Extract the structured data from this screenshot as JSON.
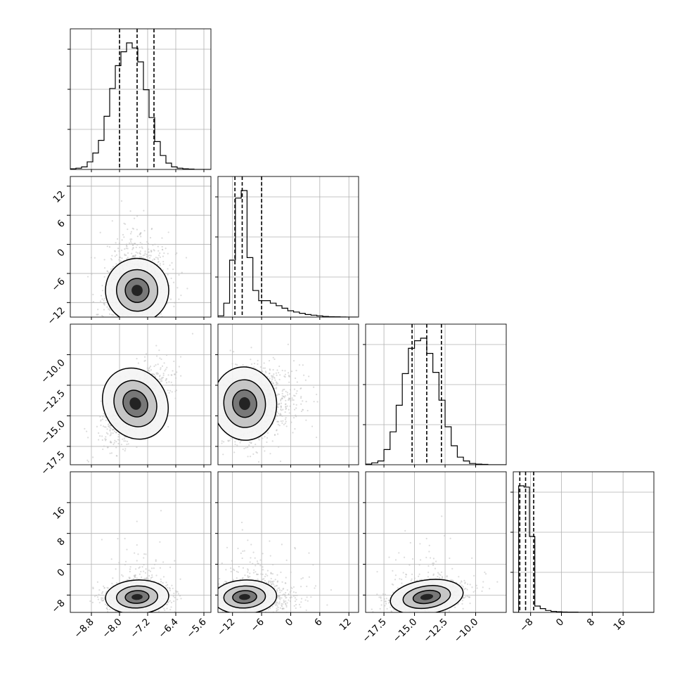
{
  "chart_data": {
    "type": "corner",
    "parameters": [
      {
        "ticks": [
          -8.8,
          -8.0,
          -7.2,
          -6.4,
          -5.6
        ],
        "tick_labels": [
          "−8.8",
          "−8.0",
          "−7.2",
          "−6.4",
          "−5.6"
        ],
        "range": [
          -9.4,
          -5.4
        ],
        "quantiles": [
          -8.0,
          -7.5,
          -7.02
        ],
        "hist": {
          "start": -9.4,
          "width": 0.16,
          "heights": [
            0.5,
            1,
            2,
            6,
            13,
            23,
            42,
            64,
            82,
            93,
            100,
            96,
            85,
            63,
            41,
            22,
            11,
            5,
            2,
            1,
            0.5,
            0.3,
            0,
            0,
            0
          ]
        }
      },
      {
        "ticks": [
          -12,
          -6,
          0,
          6,
          12
        ],
        "tick_labels": [
          "−12",
          "−6",
          "0",
          "6",
          "12"
        ],
        "range": [
          -15,
          14
        ],
        "quantiles": [
          -11.5,
          -10.0,
          -6.0
        ],
        "hist": {
          "start": -15,
          "width": 1.2,
          "heights": [
            1,
            11,
            45,
            94,
            100,
            47,
            21,
            13,
            13,
            11,
            9,
            7,
            5,
            4,
            3,
            2,
            1.5,
            1,
            0.5,
            0.3,
            0.2,
            0.1,
            0,
            0
          ]
        }
      },
      {
        "ticks": [
          -17.5,
          -15.0,
          -12.5,
          -10.0
        ],
        "tick_labels": [
          "−17.5",
          "−15.0",
          "−12.5",
          "−10.0"
        ],
        "range": [
          -19,
          -7.5
        ],
        "quantiles": [
          -15.2,
          -14.0,
          -12.8
        ],
        "hist": {
          "start": -19,
          "width": 0.5,
          "heights": [
            0.5,
            1.5,
            3,
            12,
            26,
            47,
            72,
            92,
            98,
            100,
            88,
            73,
            51,
            30,
            15,
            6,
            3,
            1,
            0.5,
            0.3,
            0,
            0,
            0
          ]
        }
      },
      {
        "ticks": [
          -8,
          0,
          8,
          16
        ],
        "tick_labels": [
          "−8",
          "0",
          "8",
          "16"
        ],
        "range": [
          -12.5,
          24
        ],
        "quantiles": [
          -10.8,
          -9.3,
          -7.2
        ],
        "hist": {
          "start": -12.5,
          "width": 1.4,
          "heights": [
            0,
            100,
            99,
            60,
            5,
            3,
            1.5,
            0.8,
            0.5,
            0.3,
            0.2,
            0.2,
            0.1,
            0.1,
            0.1,
            0.1,
            0,
            0,
            0,
            0,
            0,
            0,
            0,
            0,
            0,
            0
          ]
        }
      }
    ],
    "pairs": [
      {
        "row": 1,
        "col": 0,
        "mean": [
          -7.5,
          -9.5
        ],
        "sd": [
          0.45,
          3.3
        ],
        "corr": 0.15
      },
      {
        "row": 2,
        "col": 0,
        "mean": [
          -7.55,
          -14.0
        ],
        "sd": [
          0.45,
          1.5
        ],
        "corr": 0.55
      },
      {
        "row": 2,
        "col": 1,
        "mean": [
          -9.5,
          -14.0
        ],
        "sd": [
          3.3,
          1.5
        ],
        "corr": 0.1
      },
      {
        "row": 3,
        "col": 0,
        "mean": [
          -7.5,
          -8.5
        ],
        "sd": [
          0.45,
          2.2
        ],
        "corr": 0.1
      },
      {
        "row": 3,
        "col": 1,
        "mean": [
          -9.5,
          -8.5
        ],
        "sd": [
          3.3,
          2.2
        ],
        "corr": 0.1
      },
      {
        "row": 3,
        "col": 2,
        "mean": [
          -14.0,
          -8.5
        ],
        "sd": [
          1.5,
          2.2
        ],
        "corr": 0.35
      }
    ],
    "grid": true,
    "colors": {
      "scatter": "#bfbfbf",
      "contour": "#000000",
      "quantile_line": "#000000",
      "grid": "#b0b0b0"
    }
  }
}
